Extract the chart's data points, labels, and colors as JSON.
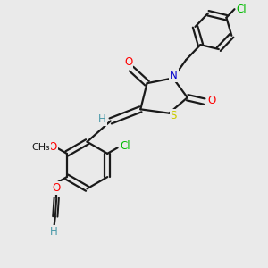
{
  "bg_color": "#eaeaea",
  "bond_color": "#1a1a1a",
  "bond_width": 1.6,
  "atom_colors": {
    "O": "#ff0000",
    "N": "#0000cc",
    "S": "#cccc00",
    "Cl": "#00bb00",
    "H": "#4a9aaa"
  },
  "font_size": 8.5,
  "figsize": [
    3.0,
    3.0
  ],
  "dpi": 100
}
